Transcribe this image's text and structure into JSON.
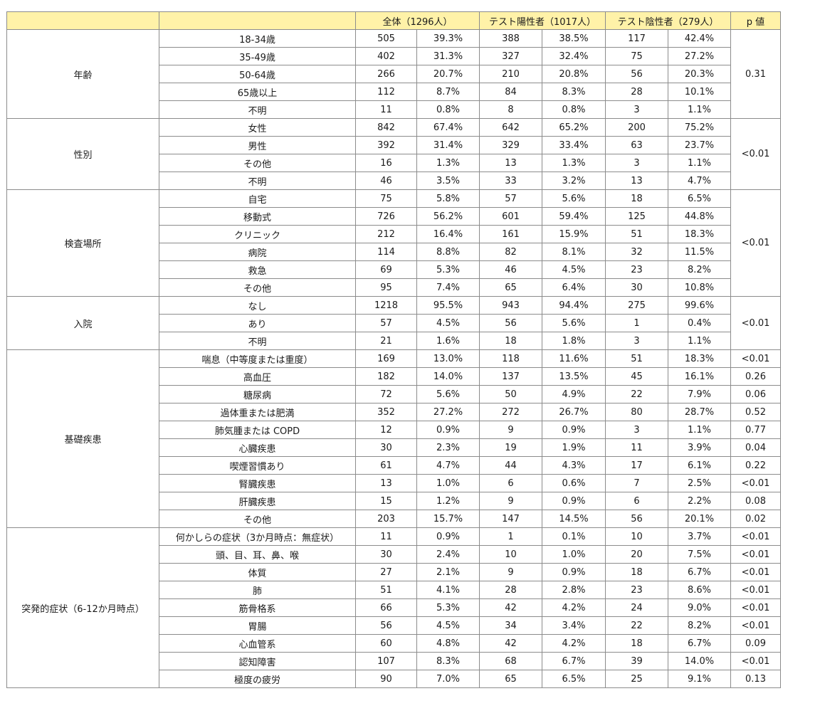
{
  "header": {
    "blank1": "",
    "blank2": "",
    "overall": "全体（1296人）",
    "positive": "テスト陽性者（1017人）",
    "negative": "テスト陰性者（279人）",
    "p": "p 値"
  },
  "groups": [
    {
      "label": "年齢",
      "p": "0.31",
      "p_merged": true,
      "rows": [
        {
          "label": "18-34歳",
          "n_all": "505",
          "pct_all": "39.3%",
          "n_pos": "388",
          "pct_pos": "38.5%",
          "n_neg": "117",
          "pct_neg": "42.4%"
        },
        {
          "label": "35-49歳",
          "n_all": "402",
          "pct_all": "31.3%",
          "n_pos": "327",
          "pct_pos": "32.4%",
          "n_neg": "75",
          "pct_neg": "27.2%"
        },
        {
          "label": "50-64歳",
          "n_all": "266",
          "pct_all": "20.7%",
          "n_pos": "210",
          "pct_pos": "20.8%",
          "n_neg": "56",
          "pct_neg": "20.3%"
        },
        {
          "label": "65歳以上",
          "n_all": "112",
          "pct_all": "8.7%",
          "n_pos": "84",
          "pct_pos": "8.3%",
          "n_neg": "28",
          "pct_neg": "10.1%"
        },
        {
          "label": "不明",
          "n_all": "11",
          "pct_all": "0.8%",
          "n_pos": "8",
          "pct_pos": "0.8%",
          "n_neg": "3",
          "pct_neg": "1.1%"
        }
      ]
    },
    {
      "label": "性別",
      "p": "<0.01",
      "p_merged": true,
      "rows": [
        {
          "label": "女性",
          "n_all": "842",
          "pct_all": "67.4%",
          "n_pos": "642",
          "pct_pos": "65.2%",
          "n_neg": "200",
          "pct_neg": "75.2%"
        },
        {
          "label": "男性",
          "n_all": "392",
          "pct_all": "31.4%",
          "n_pos": "329",
          "pct_pos": "33.4%",
          "n_neg": "63",
          "pct_neg": "23.7%"
        },
        {
          "label": "その他",
          "n_all": "16",
          "pct_all": "1.3%",
          "n_pos": "13",
          "pct_pos": "1.3%",
          "n_neg": "3",
          "pct_neg": "1.1%"
        },
        {
          "label": "不明",
          "n_all": "46",
          "pct_all": "3.5%",
          "n_pos": "33",
          "pct_pos": "3.2%",
          "n_neg": "13",
          "pct_neg": "4.7%"
        }
      ]
    },
    {
      "label": "検査場所",
      "p": "<0.01",
      "p_merged": true,
      "rows": [
        {
          "label": "自宅",
          "n_all": "75",
          "pct_all": "5.8%",
          "n_pos": "57",
          "pct_pos": "5.6%",
          "n_neg": "18",
          "pct_neg": "6.5%"
        },
        {
          "label": "移動式",
          "n_all": "726",
          "pct_all": "56.2%",
          "n_pos": "601",
          "pct_pos": "59.4%",
          "n_neg": "125",
          "pct_neg": "44.8%"
        },
        {
          "label": "クリニック",
          "n_all": "212",
          "pct_all": "16.4%",
          "n_pos": "161",
          "pct_pos": "15.9%",
          "n_neg": "51",
          "pct_neg": "18.3%"
        },
        {
          "label": "病院",
          "n_all": "114",
          "pct_all": "8.8%",
          "n_pos": "82",
          "pct_pos": "8.1%",
          "n_neg": "32",
          "pct_neg": "11.5%"
        },
        {
          "label": "救急",
          "n_all": "69",
          "pct_all": "5.3%",
          "n_pos": "46",
          "pct_pos": "4.5%",
          "n_neg": "23",
          "pct_neg": "8.2%"
        },
        {
          "label": "その他",
          "n_all": "95",
          "pct_all": "7.4%",
          "n_pos": "65",
          "pct_pos": "6.4%",
          "n_neg": "30",
          "pct_neg": "10.8%"
        }
      ]
    },
    {
      "label": "入院",
      "p": "<0.01",
      "p_merged": true,
      "rows": [
        {
          "label": "なし",
          "n_all": "1218",
          "pct_all": "95.5%",
          "n_pos": "943",
          "pct_pos": "94.4%",
          "n_neg": "275",
          "pct_neg": "99.6%"
        },
        {
          "label": "あり",
          "n_all": "57",
          "pct_all": "4.5%",
          "n_pos": "56",
          "pct_pos": "5.6%",
          "n_neg": "1",
          "pct_neg": "0.4%"
        },
        {
          "label": "不明",
          "n_all": "21",
          "pct_all": "1.6%",
          "n_pos": "18",
          "pct_pos": "1.8%",
          "n_neg": "3",
          "pct_neg": "1.1%"
        }
      ]
    },
    {
      "label": "基礎疾患",
      "p_merged": false,
      "rows": [
        {
          "label": "喘息（中等度または重度）",
          "n_all": "169",
          "pct_all": "13.0%",
          "n_pos": "118",
          "pct_pos": "11.6%",
          "n_neg": "51",
          "pct_neg": "18.3%",
          "p": "<0.01"
        },
        {
          "label": "高血圧",
          "n_all": "182",
          "pct_all": "14.0%",
          "n_pos": "137",
          "pct_pos": "13.5%",
          "n_neg": "45",
          "pct_neg": "16.1%",
          "p": "0.26"
        },
        {
          "label": "糖尿病",
          "n_all": "72",
          "pct_all": "5.6%",
          "n_pos": "50",
          "pct_pos": "4.9%",
          "n_neg": "22",
          "pct_neg": "7.9%",
          "p": "0.06"
        },
        {
          "label": "過体重または肥満",
          "n_all": "352",
          "pct_all": "27.2%",
          "n_pos": "272",
          "pct_pos": "26.7%",
          "n_neg": "80",
          "pct_neg": "28.7%",
          "p": "0.52"
        },
        {
          "label": "肺気腫または COPD",
          "n_all": "12",
          "pct_all": "0.9%",
          "n_pos": "9",
          "pct_pos": "0.9%",
          "n_neg": "3",
          "pct_neg": "1.1%",
          "p": "0.77"
        },
        {
          "label": "心臓疾患",
          "n_all": "30",
          "pct_all": "2.3%",
          "n_pos": "19",
          "pct_pos": "1.9%",
          "n_neg": "11",
          "pct_neg": "3.9%",
          "p": "0.04"
        },
        {
          "label": "喫煙習慣あり",
          "n_all": "61",
          "pct_all": "4.7%",
          "n_pos": "44",
          "pct_pos": "4.3%",
          "n_neg": "17",
          "pct_neg": "6.1%",
          "p": "0.22"
        },
        {
          "label": "腎臓疾患",
          "n_all": "13",
          "pct_all": "1.0%",
          "n_pos": "6",
          "pct_pos": "0.6%",
          "n_neg": "7",
          "pct_neg": "2.5%",
          "p": "<0.01"
        },
        {
          "label": "肝臓疾患",
          "n_all": "15",
          "pct_all": "1.2%",
          "n_pos": "9",
          "pct_pos": "0.9%",
          "n_neg": "6",
          "pct_neg": "2.2%",
          "p": "0.08"
        },
        {
          "label": "その他",
          "n_all": "203",
          "pct_all": "15.7%",
          "n_pos": "147",
          "pct_pos": "14.5%",
          "n_neg": "56",
          "pct_neg": "20.1%",
          "p": "0.02"
        }
      ]
    },
    {
      "label": "突発的症状（6-12か月時点）",
      "p_merged": false,
      "rows": [
        {
          "label": "何かしらの症状（3か月時点：無症状）",
          "n_all": "11",
          "pct_all": "0.9%",
          "n_pos": "1",
          "pct_pos": "0.1%",
          "n_neg": "10",
          "pct_neg": "3.7%",
          "p": "<0.01"
        },
        {
          "label": "頭、目、耳、鼻、喉",
          "n_all": "30",
          "pct_all": "2.4%",
          "n_pos": "10",
          "pct_pos": "1.0%",
          "n_neg": "20",
          "pct_neg": "7.5%",
          "p": "<0.01"
        },
        {
          "label": "体質",
          "n_all": "27",
          "pct_all": "2.1%",
          "n_pos": "9",
          "pct_pos": "0.9%",
          "n_neg": "18",
          "pct_neg": "6.7%",
          "p": "<0.01"
        },
        {
          "label": "肺",
          "n_all": "51",
          "pct_all": "4.1%",
          "n_pos": "28",
          "pct_pos": "2.8%",
          "n_neg": "23",
          "pct_neg": "8.6%",
          "p": "<0.01"
        },
        {
          "label": "筋骨格系",
          "n_all": "66",
          "pct_all": "5.3%",
          "n_pos": "42",
          "pct_pos": "4.2%",
          "n_neg": "24",
          "pct_neg": "9.0%",
          "p": "<0.01"
        },
        {
          "label": "胃腸",
          "n_all": "56",
          "pct_all": "4.5%",
          "n_pos": "34",
          "pct_pos": "3.4%",
          "n_neg": "22",
          "pct_neg": "8.2%",
          "p": "<0.01"
        },
        {
          "label": "心血管系",
          "n_all": "60",
          "pct_all": "4.8%",
          "n_pos": "42",
          "pct_pos": "4.2%",
          "n_neg": "18",
          "pct_neg": "6.7%",
          "p": "0.09"
        },
        {
          "label": "認知障害",
          "n_all": "107",
          "pct_all": "8.3%",
          "n_pos": "68",
          "pct_pos": "6.7%",
          "n_neg": "39",
          "pct_neg": "14.0%",
          "p": "<0.01"
        },
        {
          "label": "極度の疲労",
          "n_all": "90",
          "pct_all": "7.0%",
          "n_pos": "65",
          "pct_pos": "6.5%",
          "n_neg": "25",
          "pct_neg": "9.1%",
          "p": "0.13"
        }
      ]
    }
  ]
}
